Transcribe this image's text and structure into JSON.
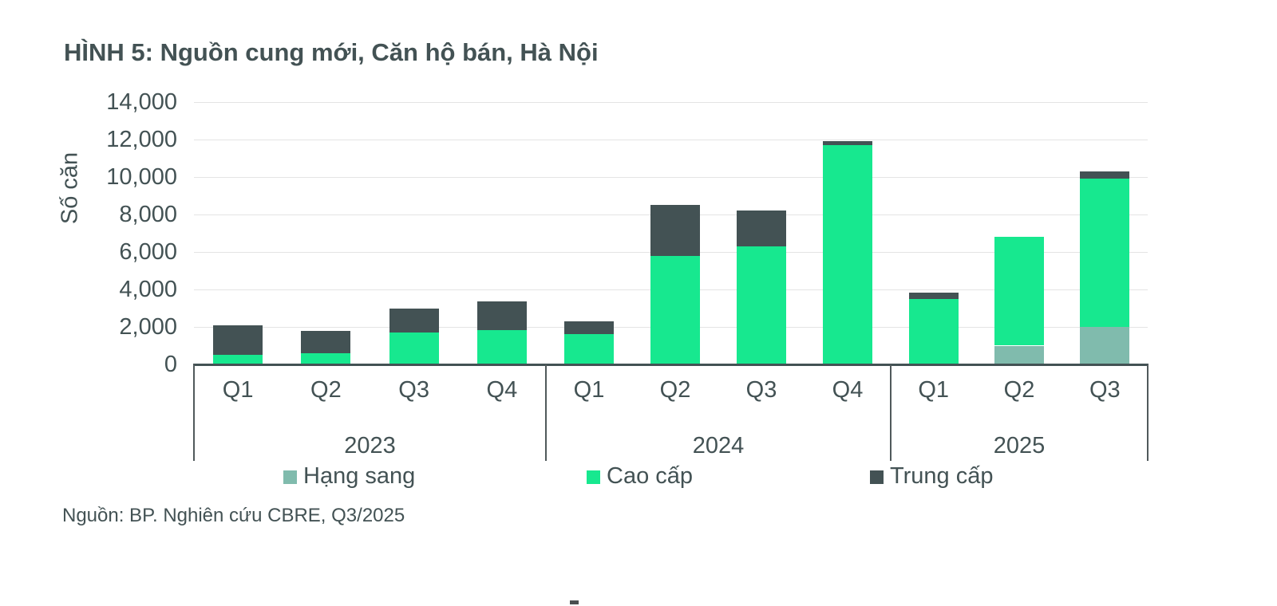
{
  "title": "HÌNH 5: Nguồn cung mới, Căn hộ bán, Hà Nội",
  "source": "Nguồn: BP. Nghiên cứu CBRE, Q3/2025",
  "colors": {
    "accent_green": "#17E88F",
    "celadon": "#80BBAD",
    "dark_slate": "#435254",
    "text": "#435254",
    "gridline": "#E4E4E4",
    "box_border": "#50595B"
  },
  "legend": {
    "items": [
      {
        "label": "Hạng sang",
        "color": "#80BBAD"
      },
      {
        "label": "Cao cấp",
        "color": "#17E88F"
      },
      {
        "label": "Trung cấp",
        "color": "#435254"
      }
    ]
  },
  "chart_data": {
    "type": "bar",
    "stacked": true,
    "title": "HÌNH 5: Nguồn cung mới, Căn hộ bán, Hà Nội",
    "xlabel": "",
    "ylabel": "Số căn",
    "ylim": [
      0,
      14000
    ],
    "ytick_step": 2000,
    "ytick_labels": [
      "0",
      "2,000",
      "4,000",
      "6,000",
      "8,000",
      "10,000",
      "12,000",
      "14,000"
    ],
    "grid": true,
    "legend_position": "bottom",
    "groups": [
      {
        "year": "2023",
        "quarters": [
          "Q1",
          "Q2",
          "Q3",
          "Q4"
        ]
      },
      {
        "year": "2024",
        "quarters": [
          "Q1",
          "Q2",
          "Q3",
          "Q4"
        ]
      },
      {
        "year": "2025",
        "quarters": [
          "Q1",
          "Q2",
          "Q3"
        ]
      }
    ],
    "categories": [
      "Q1 2023",
      "Q2 2023",
      "Q3 2023",
      "Q4 2023",
      "Q1 2024",
      "Q2 2024",
      "Q3 2024",
      "Q4 2024",
      "Q1 2025",
      "Q2 2025",
      "Q3 2025"
    ],
    "series": [
      {
        "name": "Hạng sang",
        "color": "#80BBAD",
        "values": [
          0,
          0,
          0,
          0,
          0,
          0,
          0,
          0,
          0,
          1000,
          2000
        ]
      },
      {
        "name": "Cao cấp",
        "color": "#17E88F",
        "values": [
          500,
          600,
          1700,
          1850,
          1600,
          5800,
          6300,
          11700,
          3500,
          5800,
          7900
        ]
      },
      {
        "name": "Trung cấp",
        "color": "#435254",
        "values": [
          1600,
          1200,
          1300,
          1500,
          700,
          2700,
          1900,
          200,
          350,
          0,
          400
        ]
      }
    ],
    "totals": [
      2100,
      1800,
      3000,
      3350,
      2300,
      8500,
      8200,
      11900,
      3850,
      6800,
      10300
    ]
  }
}
